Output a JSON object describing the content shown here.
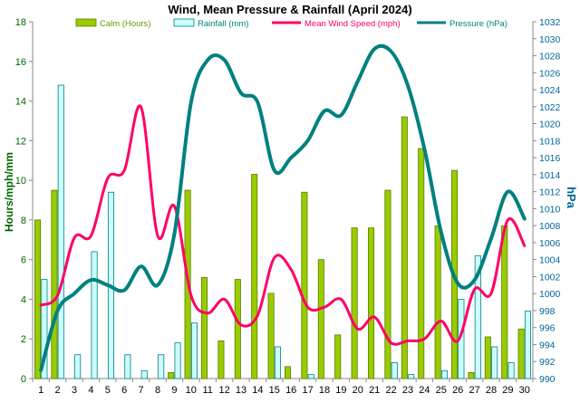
{
  "chart_data": {
    "type": "bar",
    "title": "Wind, Mean Pressure & Rainfall (April 2024)",
    "xlabel": "",
    "ylabel": "Hours/mph/mm",
    "y2label": "hPa",
    "categories": [
      "1",
      "2",
      "3",
      "4",
      "5",
      "6",
      "7",
      "8",
      "9",
      "10",
      "11",
      "12",
      "13",
      "14",
      "15",
      "16",
      "17",
      "18",
      "19",
      "20",
      "21",
      "22",
      "23",
      "24",
      "25",
      "26",
      "27",
      "28",
      "29",
      "30"
    ],
    "ylim": [
      0,
      18
    ],
    "y2lim": [
      990,
      1032
    ],
    "yticks": [
      0,
      2,
      4,
      6,
      8,
      10,
      12,
      14,
      16,
      18
    ],
    "y2ticks": [
      990,
      992,
      994,
      996,
      998,
      1000,
      1002,
      1004,
      1006,
      1008,
      1010,
      1012,
      1014,
      1016,
      1018,
      1020,
      1022,
      1024,
      1026,
      1028,
      1030,
      1032
    ],
    "grid": false,
    "legend_position": "top",
    "series": [
      {
        "name": "Calm (Hours)",
        "kind": "bar",
        "axis": "left",
        "color": "#99cc00",
        "values": [
          8,
          9.5,
          0,
          0,
          0,
          0,
          0,
          0,
          0.3,
          9.5,
          5.1,
          1.9,
          5,
          10.3,
          4.3,
          0.6,
          9.4,
          6,
          2.2,
          7.6,
          7.6,
          9.5,
          13.2,
          11.6,
          7.7,
          10.5,
          0.3,
          2.1,
          7.7,
          2.5
        ]
      },
      {
        "name": "Rainfall (mm)",
        "kind": "bar",
        "axis": "left",
        "color": "#ccffff",
        "values": [
          5,
          14.8,
          1.2,
          6.4,
          9.4,
          1.2,
          0.4,
          1.2,
          1.8,
          2.8,
          0,
          0,
          0,
          0,
          1.6,
          0,
          0.2,
          0,
          0,
          0,
          0,
          0.8,
          0.2,
          0,
          0.4,
          4,
          6.2,
          1.6,
          0.8,
          3.4
        ]
      },
      {
        "name": "Mean Wind Speed (mph)",
        "kind": "line",
        "axis": "left",
        "color": "#ff0066",
        "values": [
          3.7,
          4.2,
          7.1,
          7.2,
          10.1,
          10.5,
          13.7,
          7.2,
          8.7,
          4.2,
          3.3,
          4,
          2.7,
          3.2,
          6.1,
          5.5,
          3.6,
          3.6,
          4,
          2.5,
          3.1,
          1.8,
          1.9,
          2,
          2.9,
          1.9,
          4.5,
          4.3,
          8,
          6.7
        ]
      },
      {
        "name": "Pressure (hPa)",
        "kind": "line",
        "axis": "right",
        "color": "#008080",
        "values": [
          991,
          998,
          1000,
          1001.6,
          1001,
          1000.4,
          1003.2,
          1001,
          1007,
          1022.5,
          1027.5,
          1027.5,
          1023.6,
          1022.5,
          1014.5,
          1016,
          1018,
          1021.5,
          1021,
          1025,
          1028.8,
          1028.5,
          1024.5,
          1017,
          1007.2,
          1001.2,
          1001.6,
          1006.5,
          1012,
          1008.8
        ]
      }
    ]
  }
}
